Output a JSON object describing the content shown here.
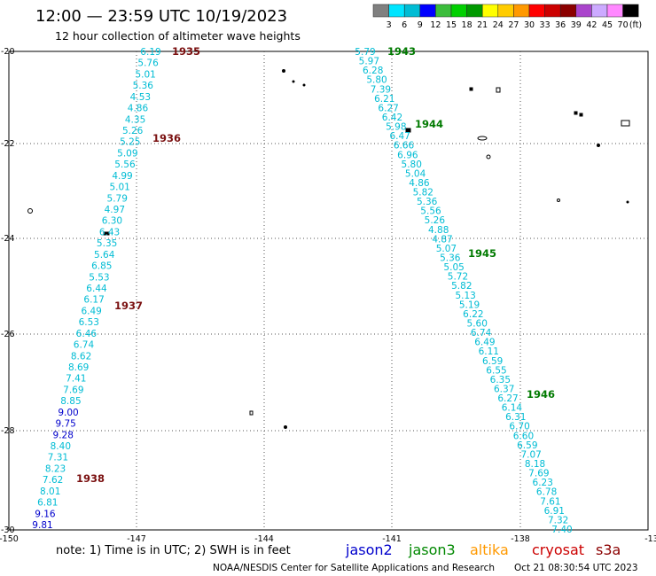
{
  "title": "12:00 — 23:59 UTC 10/19/2023",
  "subtitle": "12 hour collection of altimeter wave heights",
  "legend": {
    "colors": [
      "#808080",
      "#00e5ff",
      "#00bcd4",
      "#0000ff",
      "#3cbd3c",
      "#00d000",
      "#009900",
      "#ffff00",
      "#ffcc00",
      "#ff9900",
      "#ff0000",
      "#cc0000",
      "#8b0000",
      "#aa44cc",
      "#ccaaff",
      "#ff88ff",
      "#000000"
    ],
    "labels": [
      "3",
      "6",
      "9",
      "12",
      "15",
      "18",
      "21",
      "24",
      "27",
      "30",
      "33",
      "36",
      "39",
      "42",
      "45",
      "70"
    ],
    "unit": "(ft)"
  },
  "axes": {
    "y_ticks": [
      "-20",
      "-22",
      "-24",
      "-26",
      "-28",
      "-30"
    ],
    "x_ticks": [
      "-150",
      "-147",
      "-144",
      "-141",
      "-138",
      "-13"
    ]
  },
  "tracks": [
    {
      "satellite": "cryosat",
      "color": "#7a1010",
      "times": [
        "1935",
        "1936",
        "1937",
        "1938"
      ],
      "values": [
        "6.19",
        "5.76",
        "5.01",
        "5.36",
        "4.53",
        "4.86",
        "4.35",
        "5.26",
        "5.25",
        "5.09",
        "5.56",
        "4.99",
        "5.01",
        "5.79",
        "4.97",
        "6.30",
        "6.43",
        "5.35",
        "5.64",
        "6.85",
        "5.53",
        "6.44",
        "6.17",
        "6.49",
        "6.53",
        "6.46",
        "6.74",
        "8.62",
        "8.69",
        "7.41",
        "7.69",
        "8.85",
        "9.00",
        "9.75",
        "9.28",
        "8.40",
        "7.31",
        "8.23",
        "7.62",
        "8.01",
        "6.81",
        "9.16",
        "9.81"
      ]
    },
    {
      "satellite": "jason3",
      "color": "#007a00",
      "times": [
        "1943",
        "1944",
        "1945",
        "1946"
      ],
      "values": [
        "5.79",
        "5.97",
        "6.28",
        "5.80",
        "7.39",
        "6.21",
        "6.27",
        "6.42",
        "5.98",
        "6.47",
        "6.66",
        "6.96",
        "5.80",
        "5.04",
        "4.86",
        "5.82",
        "5.36",
        "5.56",
        "5.26",
        "4.88",
        "4.87",
        "5.07",
        "5.36",
        "5.05",
        "5.72",
        "5.82",
        "5.13",
        "5.19",
        "6.22",
        "5.60",
        "6.74",
        "6.49",
        "6.11",
        "6.59",
        "6.55",
        "6.35",
        "6.37",
        "6.27",
        "6.14",
        "6.31",
        "6.70",
        "6.60",
        "6.59",
        "7.07",
        "8.18",
        "7.69",
        "6.23",
        "6.78",
        "7.61",
        "6.91",
        "7.32",
        "7.40"
      ]
    }
  ],
  "note": "note:  1) Time is in UTC;  2) SWH is in feet",
  "satellites": [
    {
      "name": "jason2",
      "color": "#0000cc"
    },
    {
      "name": "jason3",
      "color": "#008800"
    },
    {
      "name": "altika",
      "color": "#ff9900"
    },
    {
      "name": "cryosat",
      "color": "#cc0000"
    },
    {
      "name": "s3a",
      "color": "#8b0000"
    }
  ],
  "credit_left": "NOAA/NESDIS Center for Satellite Applications and Research",
  "credit_right": "Oct 21 08:30:54 UTC 2023"
}
